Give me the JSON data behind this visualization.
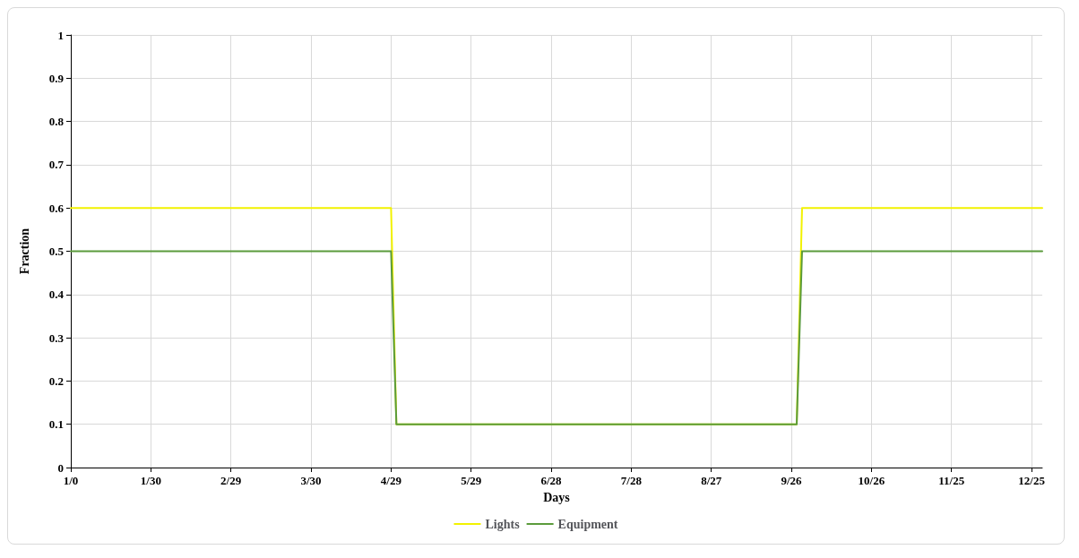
{
  "chart_data": {
    "type": "line",
    "xlabel": "Days",
    "ylabel": "Fraction",
    "categories": [
      "1/0",
      null,
      null,
      null,
      null,
      null,
      null,
      null,
      null,
      null,
      null,
      null,
      null,
      null,
      null,
      "1/30",
      null,
      null,
      null,
      null,
      null,
      null,
      null,
      null,
      null,
      null,
      null,
      null,
      null,
      null,
      "2/29",
      null,
      null,
      null,
      null,
      null,
      null,
      null,
      null,
      null,
      null,
      null,
      null,
      null,
      null,
      "3/30",
      null,
      null,
      null,
      null,
      null,
      null,
      null,
      null,
      null,
      null,
      null,
      null,
      null,
      null,
      "4/29",
      null,
      null,
      null,
      null,
      null,
      null,
      null,
      null,
      null,
      null,
      null,
      null,
      null,
      null,
      "5/29",
      null,
      null,
      null,
      null,
      null,
      null,
      null,
      null,
      null,
      null,
      null,
      null,
      null,
      null,
      "6/28",
      null,
      null,
      null,
      null,
      null,
      null,
      null,
      null,
      null,
      null,
      null,
      null,
      null,
      null,
      "7/28",
      null,
      null,
      null,
      null,
      null,
      null,
      null,
      null,
      null,
      null,
      null,
      null,
      null,
      null,
      "8/27",
      null,
      null,
      null,
      null,
      null,
      null,
      null,
      null,
      null,
      null,
      null,
      null,
      null,
      null,
      "9/26",
      null,
      null,
      null,
      null,
      null,
      null,
      null,
      null,
      null,
      null,
      null,
      null,
      null,
      null,
      "10/26",
      null,
      null,
      null,
      null,
      null,
      null,
      null,
      null,
      null,
      null,
      null,
      null,
      null,
      null,
      "11/25",
      null,
      null,
      null,
      null,
      null,
      null,
      null,
      null,
      null,
      null,
      null,
      null,
      null,
      null,
      "12/25",
      null,
      null
    ],
    "ylim": [
      0,
      1
    ],
    "yticks": [
      0,
      0.1,
      0.2,
      0.3,
      0.4,
      0.5,
      0.6,
      0.7,
      0.8,
      0.9,
      1
    ],
    "grid": true,
    "legend": "bottom",
    "series": [
      {
        "name": "Lights",
        "color": "#f2f200",
        "values": [
          0.6,
          0.6,
          0.6,
          0.6,
          0.6,
          0.6,
          0.6,
          0.6,
          0.6,
          0.6,
          0.6,
          0.6,
          0.6,
          0.6,
          0.6,
          0.6,
          0.6,
          0.6,
          0.6,
          0.6,
          0.6,
          0.6,
          0.6,
          0.6,
          0.6,
          0.6,
          0.6,
          0.6,
          0.6,
          0.6,
          0.6,
          0.6,
          0.6,
          0.6,
          0.6,
          0.6,
          0.6,
          0.6,
          0.6,
          0.6,
          0.6,
          0.6,
          0.6,
          0.6,
          0.6,
          0.6,
          0.6,
          0.6,
          0.6,
          0.6,
          0.6,
          0.6,
          0.6,
          0.6,
          0.6,
          0.6,
          0.6,
          0.6,
          0.6,
          0.6,
          0.6,
          0.1,
          0.1,
          0.1,
          0.1,
          0.1,
          0.1,
          0.1,
          0.1,
          0.1,
          0.1,
          0.1,
          0.1,
          0.1,
          0.1,
          0.1,
          0.1,
          0.1,
          0.1,
          0.1,
          0.1,
          0.1,
          0.1,
          0.1,
          0.1,
          0.1,
          0.1,
          0.1,
          0.1,
          0.1,
          0.1,
          0.1,
          0.1,
          0.1,
          0.1,
          0.1,
          0.1,
          0.1,
          0.1,
          0.1,
          0.1,
          0.1,
          0.1,
          0.1,
          0.1,
          0.1,
          0.1,
          0.1,
          0.1,
          0.1,
          0.1,
          0.1,
          0.1,
          0.1,
          0.1,
          0.1,
          0.1,
          0.1,
          0.1,
          0.1,
          0.1,
          0.1,
          0.1,
          0.1,
          0.1,
          0.1,
          0.1,
          0.1,
          0.1,
          0.1,
          0.1,
          0.1,
          0.1,
          0.1,
          0.1,
          0.1,
          0.1,
          0.6,
          0.6,
          0.6,
          0.6,
          0.6,
          0.6,
          0.6,
          0.6,
          0.6,
          0.6,
          0.6,
          0.6,
          0.6,
          0.6,
          0.6,
          0.6,
          0.6,
          0.6,
          0.6,
          0.6,
          0.6,
          0.6,
          0.6,
          0.6,
          0.6,
          0.6,
          0.6,
          0.6,
          0.6,
          0.6,
          0.6,
          0.6,
          0.6,
          0.6,
          0.6,
          0.6,
          0.6,
          0.6,
          0.6,
          0.6,
          0.6,
          0.6,
          0.6,
          0.6,
          0.6,
          0.6
        ]
      },
      {
        "name": "Equipment",
        "color": "#5b9b3c",
        "values": [
          0.5,
          0.5,
          0.5,
          0.5,
          0.5,
          0.5,
          0.5,
          0.5,
          0.5,
          0.5,
          0.5,
          0.5,
          0.5,
          0.5,
          0.5,
          0.5,
          0.5,
          0.5,
          0.5,
          0.5,
          0.5,
          0.5,
          0.5,
          0.5,
          0.5,
          0.5,
          0.5,
          0.5,
          0.5,
          0.5,
          0.5,
          0.5,
          0.5,
          0.5,
          0.5,
          0.5,
          0.5,
          0.5,
          0.5,
          0.5,
          0.5,
          0.5,
          0.5,
          0.5,
          0.5,
          0.5,
          0.5,
          0.5,
          0.5,
          0.5,
          0.5,
          0.5,
          0.5,
          0.5,
          0.5,
          0.5,
          0.5,
          0.5,
          0.5,
          0.5,
          0.5,
          0.1,
          0.1,
          0.1,
          0.1,
          0.1,
          0.1,
          0.1,
          0.1,
          0.1,
          0.1,
          0.1,
          0.1,
          0.1,
          0.1,
          0.1,
          0.1,
          0.1,
          0.1,
          0.1,
          0.1,
          0.1,
          0.1,
          0.1,
          0.1,
          0.1,
          0.1,
          0.1,
          0.1,
          0.1,
          0.1,
          0.1,
          0.1,
          0.1,
          0.1,
          0.1,
          0.1,
          0.1,
          0.1,
          0.1,
          0.1,
          0.1,
          0.1,
          0.1,
          0.1,
          0.1,
          0.1,
          0.1,
          0.1,
          0.1,
          0.1,
          0.1,
          0.1,
          0.1,
          0.1,
          0.1,
          0.1,
          0.1,
          0.1,
          0.1,
          0.1,
          0.1,
          0.1,
          0.1,
          0.1,
          0.1,
          0.1,
          0.1,
          0.1,
          0.1,
          0.1,
          0.1,
          0.1,
          0.1,
          0.1,
          0.1,
          0.1,
          0.5,
          0.5,
          0.5,
          0.5,
          0.5,
          0.5,
          0.5,
          0.5,
          0.5,
          0.5,
          0.5,
          0.5,
          0.5,
          0.5,
          0.5,
          0.5,
          0.5,
          0.5,
          0.5,
          0.5,
          0.5,
          0.5,
          0.5,
          0.5,
          0.5,
          0.5,
          0.5,
          0.5,
          0.5,
          0.5,
          0.5,
          0.5,
          0.5,
          0.5,
          0.5,
          0.5,
          0.5,
          0.5,
          0.5,
          0.5,
          0.5,
          0.5,
          0.5,
          0.5,
          0.5,
          0.5
        ]
      }
    ]
  }
}
